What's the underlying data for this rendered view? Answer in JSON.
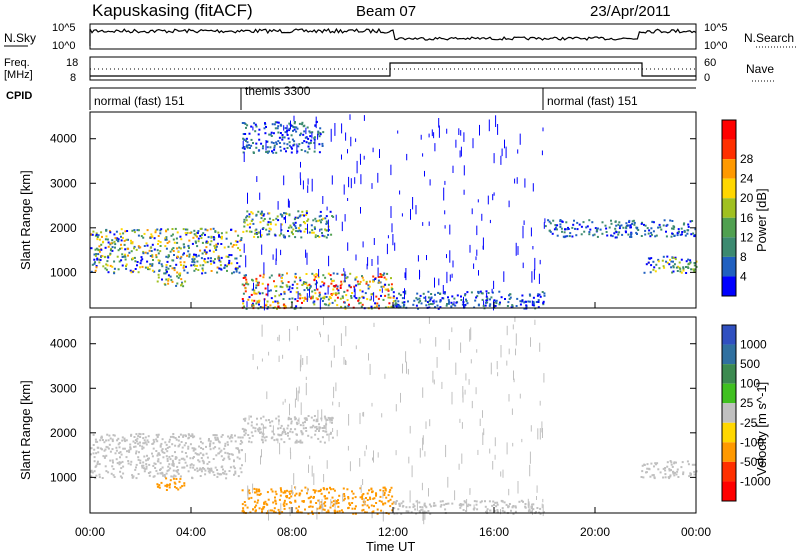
{
  "header": {
    "station": "Kapuskasing (fitACF)",
    "beam": "Beam 07",
    "date": "23/Apr/2011"
  },
  "panels": {
    "nsky": {
      "left_label": "N.Sky",
      "right_label": "N.Search",
      "ticks_left": [
        "10^5",
        "10^0"
      ],
      "ticks_right": [
        "10^5",
        "10^0"
      ]
    },
    "freq": {
      "left_label": "Freq.",
      "units": "[MHz]",
      "right_label": "Nave",
      "ticks_left": [
        "18",
        "8"
      ],
      "ticks_right": [
        "60",
        "0"
      ]
    },
    "cpid": {
      "label": "CPID",
      "modes": [
        {
          "name": "normal (fast) 151",
          "start_hour": 0
        },
        {
          "name": "themis 3300",
          "start_hour": 6
        },
        {
          "name": "normal (fast) 151",
          "start_hour": 18
        }
      ]
    }
  },
  "chart_data": [
    {
      "type": "heatmap",
      "title": "Power",
      "ylabel": "Slant Range [km]",
      "ylim": [
        200,
        4600
      ],
      "yticks": [
        1000,
        2000,
        3000,
        4000
      ],
      "colorbar_label": "Power [dB]",
      "colorbar_ticks": [
        "4",
        "8",
        "12",
        "16",
        "20",
        "24",
        "28"
      ],
      "colors": [
        "#0000ff",
        "#2060c0",
        "#3c8a70",
        "#50a050",
        "#a0c020",
        "#ffd700",
        "#ff9900",
        "#ff3000",
        "#ff0000"
      ],
      "features": [
        {
          "x_start_h": 0.0,
          "x_end_h": 6.0,
          "range_start_km": 1000,
          "range_end_km": 2000,
          "peak_db": 20
        },
        {
          "x_start_h": 2.6,
          "x_end_h": 3.8,
          "range_start_km": 700,
          "range_end_km": 1000,
          "peak_db": 22
        },
        {
          "x_start_h": 6.0,
          "x_end_h": 9.6,
          "range_start_km": 1800,
          "range_end_km": 2400,
          "peak_db": 18
        },
        {
          "x_start_h": 6.0,
          "x_end_h": 9.2,
          "range_start_km": 3700,
          "range_end_km": 4400,
          "peak_db": 8
        },
        {
          "x_start_h": 6.0,
          "x_end_h": 12.0,
          "range_start_km": 200,
          "range_end_km": 1000,
          "peak_db": 28
        },
        {
          "x_start_h": 12.0,
          "x_end_h": 18.0,
          "range_start_km": 200,
          "range_end_km": 600,
          "peak_db": 8
        },
        {
          "x_start_h": 18.0,
          "x_end_h": 24.0,
          "range_start_km": 1800,
          "range_end_km": 2200,
          "peak_db": 8
        },
        {
          "x_start_h": 21.8,
          "x_end_h": 24.0,
          "range_start_km": 1000,
          "range_end_km": 1400,
          "peak_db": 16
        }
      ]
    },
    {
      "type": "heatmap",
      "title": "Velocity",
      "ylabel": "Slant Range [km]",
      "xlabel": "Time UT",
      "ylim": [
        200,
        4600
      ],
      "yticks": [
        1000,
        2000,
        3000,
        4000
      ],
      "xticks": [
        "00:00",
        "04:00",
        "08:00",
        "12:00",
        "16:00",
        "20:00",
        "00:00"
      ],
      "colorbar_label": "Velocity [m s^-1]",
      "colorbar_ticks": [
        "1000",
        "500",
        "100",
        "25",
        "-25",
        "-100",
        "-500",
        "-1000"
      ],
      "colors": [
        "#3050c0",
        "#3070a0",
        "#3c8a50",
        "#40c020",
        "#c0c0c0",
        "#ffd700",
        "#ff9900",
        "#ff3000",
        "#ff0000"
      ],
      "features": [
        {
          "x_start_h": 0.0,
          "x_end_h": 6.0,
          "range_start_km": 1000,
          "range_end_km": 2000,
          "velocity_ms": 0
        },
        {
          "x_start_h": 2.6,
          "x_end_h": 3.8,
          "range_start_km": 700,
          "range_end_km": 1000,
          "velocity_ms": -300
        },
        {
          "x_start_h": 6.0,
          "x_end_h": 9.6,
          "range_start_km": 1800,
          "range_end_km": 2400,
          "velocity_ms": 0
        },
        {
          "x_start_h": 6.0,
          "x_end_h": 12.0,
          "range_start_km": 200,
          "range_end_km": 800,
          "velocity_ms": -100
        },
        {
          "x_start_h": 12.0,
          "x_end_h": 18.0,
          "range_start_km": 200,
          "range_end_km": 500,
          "velocity_ms": 0
        },
        {
          "x_start_h": 21.8,
          "x_end_h": 24.0,
          "range_start_km": 1000,
          "range_end_km": 1400,
          "velocity_ms": 0
        }
      ]
    }
  ]
}
